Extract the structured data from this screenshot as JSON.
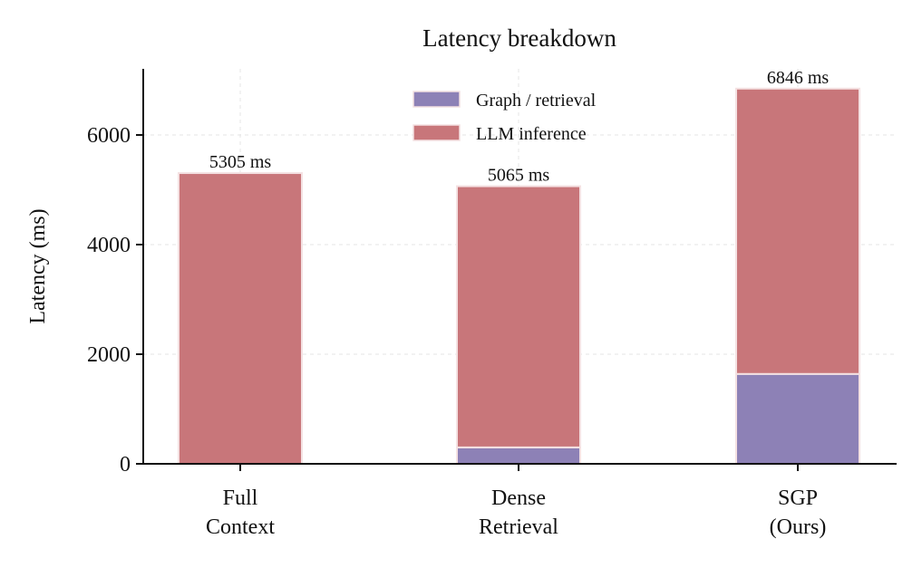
{
  "chart_data": {
    "type": "bar",
    "stacked": true,
    "title": "Latency breakdown",
    "ylabel": "Latency (ms)",
    "xlabel": "",
    "ylim": [
      0,
      7200
    ],
    "yticks": [
      0,
      2000,
      4000,
      6000
    ],
    "grid": true,
    "legend_position": "top-center",
    "categories": [
      [
        "Full",
        "Context"
      ],
      [
        "Dense",
        "Retrieval"
      ],
      [
        "SGP",
        "(Ours)"
      ]
    ],
    "series": [
      {
        "name": "Graph / retrieval",
        "color": "#8d81b6",
        "values": [
          0,
          300,
          1640
        ]
      },
      {
        "name": "LLM inference",
        "color": "#c8767a",
        "values": [
          5305,
          4765,
          5206
        ]
      }
    ],
    "totals": [
      5305,
      5065,
      6846
    ],
    "total_labels": [
      "5305 ms",
      "5065 ms",
      "6846 ms"
    ]
  }
}
